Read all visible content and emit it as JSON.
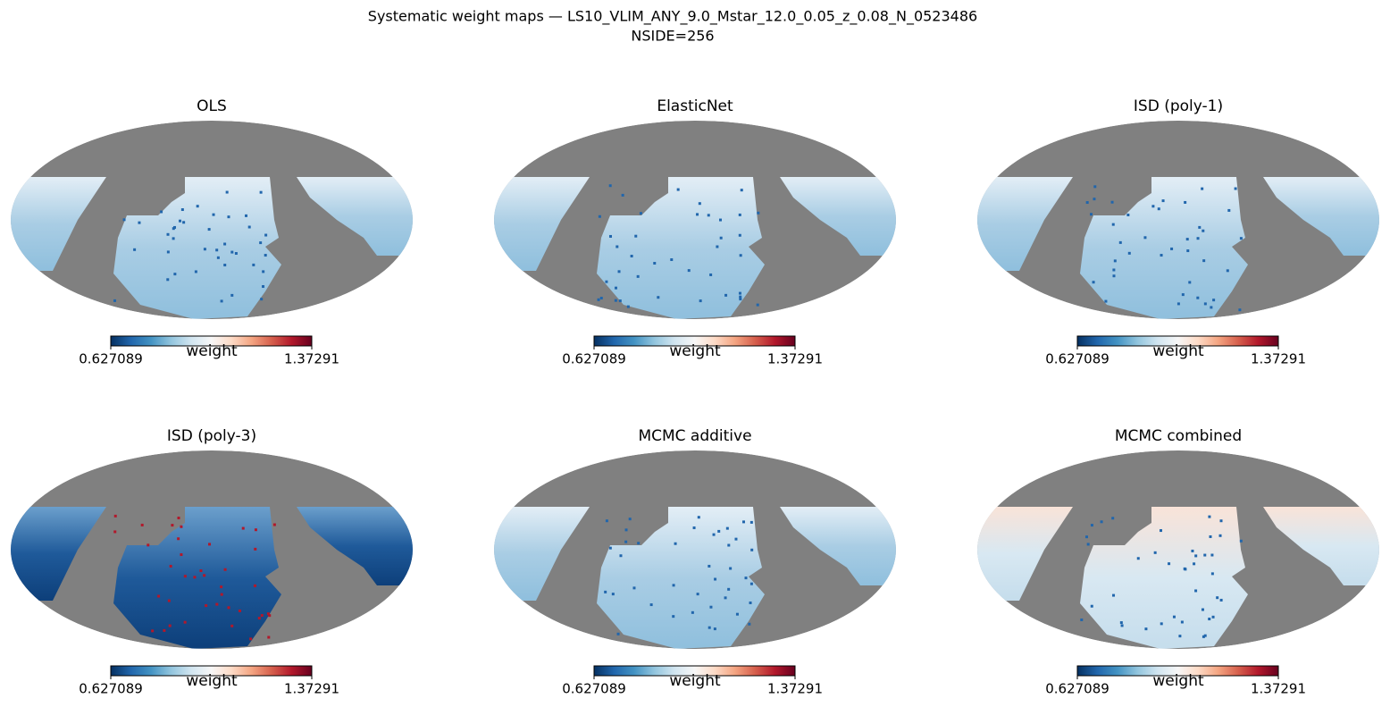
{
  "title": "Systematic weight maps — LS10_VLIM_ANY_9.0_Mstar_12.0_0.05_z_0.08_N_0523486",
  "subtitle": "NSIDE=256",
  "panels": [
    {
      "title": "OLS",
      "colorbar": {
        "label": "weight",
        "min": 0.627089,
        "max": 1.37291
      }
    },
    {
      "title": "ElasticNet",
      "colorbar": {
        "label": "weight",
        "min": 0.627089,
        "max": 1.37291
      }
    },
    {
      "title": "ISD (poly-1)",
      "colorbar": {
        "label": "weight",
        "min": 0.627089,
        "max": 1.37291
      }
    },
    {
      "title": "ISD (poly-3)",
      "colorbar": {
        "label": "weight",
        "min": 0.627089,
        "max": 1.37291
      }
    },
    {
      "title": "MCMC additive",
      "colorbar": {
        "label": "weight",
        "min": 0.627089,
        "max": 1.37291
      }
    },
    {
      "title": "MCMC combined",
      "colorbar": {
        "label": "weight",
        "min": 0.627089,
        "max": 1.37291
      }
    }
  ]
}
